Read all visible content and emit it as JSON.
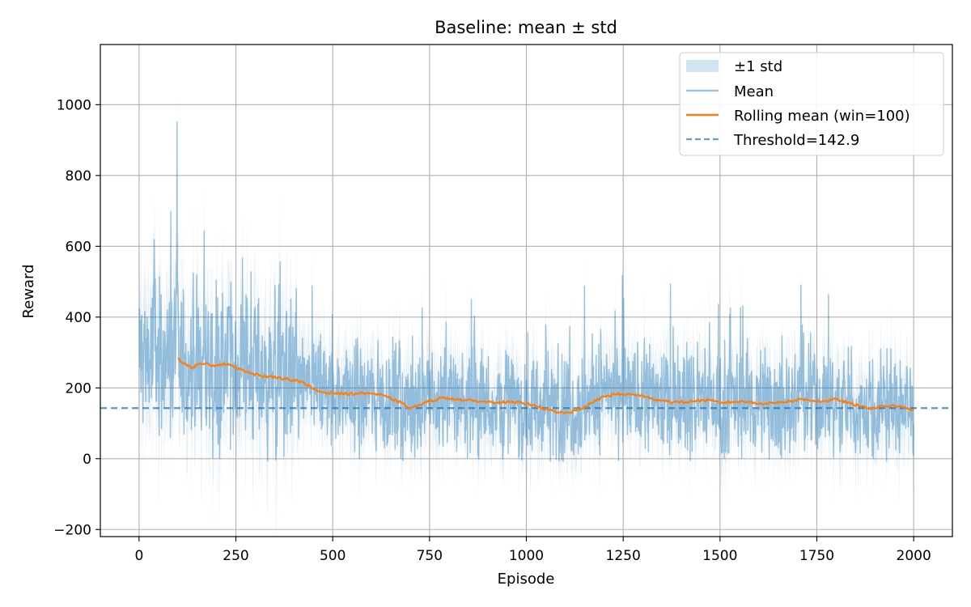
{
  "chart_data": {
    "type": "line",
    "title": "Baseline: mean ± std",
    "xlabel": "Episode",
    "ylabel": "Reward",
    "xlim": [
      -100,
      2100
    ],
    "ylim": [
      -220,
      1170
    ],
    "xticks": [
      0,
      250,
      500,
      750,
      1000,
      1250,
      1500,
      1750,
      2000
    ],
    "yticks": [
      -200,
      0,
      200,
      400,
      600,
      800,
      1000
    ],
    "grid": true,
    "legend_position": "top-right",
    "series": [
      {
        "name": "±1 std",
        "kind": "band",
        "color": "#1f77b4",
        "opacity": 0.2,
        "x_range": [
          0,
          2000
        ]
      },
      {
        "name": "Mean",
        "kind": "line",
        "color": "#1f77b4",
        "opacity": 0.4,
        "x_range": [
          0,
          2000
        ],
        "trend_x": [
          0,
          50,
          100,
          150,
          200,
          250,
          300,
          350,
          400,
          450,
          500,
          550,
          600,
          650,
          700,
          750,
          800,
          850,
          900,
          950,
          1000,
          1050,
          1100,
          1150,
          1200,
          1250,
          1300,
          1350,
          1400,
          1450,
          1500,
          1550,
          1600,
          1650,
          1700,
          1750,
          1800,
          1850,
          1900,
          1950,
          2000
        ],
        "trend_y": [
          300,
          290,
          280,
          268,
          266,
          262,
          245,
          232,
          222,
          200,
          186,
          183,
          182,
          170,
          150,
          160,
          172,
          166,
          162,
          158,
          148,
          138,
          140,
          160,
          178,
          182,
          174,
          165,
          162,
          165,
          160,
          160,
          160,
          158,
          165,
          165,
          158,
          145,
          145,
          150,
          140
        ],
        "spread": 110
      },
      {
        "name": "Rolling mean (win=100)",
        "kind": "line",
        "color": "#ff7f0e",
        "x": [
          100,
          110,
          125,
          140,
          150,
          170,
          190,
          210,
          230,
          250,
          270,
          290,
          310,
          330,
          350,
          380,
          410,
          430,
          460,
          480,
          500,
          530,
          560,
          590,
          620,
          650,
          680,
          700,
          720,
          750,
          780,
          810,
          840,
          870,
          900,
          930,
          960,
          990,
          1020,
          1050,
          1080,
          1110,
          1140,
          1170,
          1200,
          1230,
          1260,
          1290,
          1320,
          1350,
          1380,
          1410,
          1440,
          1470,
          1500,
          1530,
          1560,
          1590,
          1620,
          1650,
          1680,
          1710,
          1740,
          1770,
          1800,
          1830,
          1860,
          1890,
          1920,
          1950,
          1980,
          2000
        ],
        "y": [
          285,
          272,
          262,
          258,
          265,
          268,
          264,
          266,
          268,
          258,
          250,
          240,
          236,
          230,
          232,
          225,
          220,
          210,
          192,
          187,
          186,
          183,
          184,
          186,
          181,
          170,
          156,
          142,
          150,
          162,
          172,
          170,
          165,
          163,
          160,
          160,
          159,
          157,
          152,
          140,
          130,
          130,
          140,
          158,
          176,
          182,
          182,
          180,
          170,
          165,
          160,
          160,
          164,
          165,
          158,
          160,
          162,
          158,
          155,
          160,
          162,
          168,
          164,
          162,
          168,
          158,
          148,
          142,
          148,
          150,
          142,
          138
        ]
      },
      {
        "name": "Threshold=142.9",
        "kind": "hline",
        "color": "#1f77b4",
        "y": 142.9,
        "style": "dashed"
      }
    ]
  }
}
